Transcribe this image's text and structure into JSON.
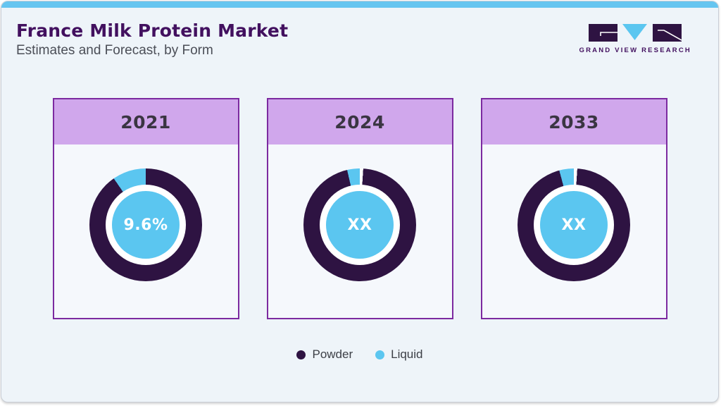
{
  "header": {
    "title": "France Milk Protein Market",
    "subtitle": "Estimates and Forecast, by Form",
    "brand": "GRAND VIEW RESEARCH"
  },
  "colors": {
    "accent_bar": "#66c5f0",
    "canvas_bg": "#eef4f9",
    "card_bg": "#f5f8fc",
    "card_border": "#7c2aa0",
    "card_header_bg": "#d0a7ec",
    "powder": "#2e1342",
    "liquid": "#5bc6f0",
    "title": "#42105f",
    "subtitle": "#4b4e57",
    "year_text": "#3a3542",
    "center_text": "#ffffff"
  },
  "chart_data": {
    "type": "pie",
    "subtype": "donut-multiples",
    "title": "France Milk Protein Market",
    "subtitle": "Estimates and Forecast, by Form",
    "legend_position": "bottom",
    "legend": [
      {
        "label": "Powder",
        "color": "#2e1342"
      },
      {
        "label": "Liquid",
        "color": "#5bc6f0"
      }
    ],
    "donuts": [
      {
        "year": "2021",
        "center_label": "9.6%",
        "liquid_share_pct": 9.6,
        "powder_share_pct": 90.4,
        "arc": {
          "liquid_start_deg": 325.4,
          "liquid_end_deg": 360,
          "leading_gap_deg": 0
        }
      },
      {
        "year": "2024",
        "center_label": "XX",
        "arc": {
          "liquid_start_deg": 347,
          "liquid_end_deg": 360,
          "leading_gap_deg": 3.5
        }
      },
      {
        "year": "2033",
        "center_label": "XX",
        "arc": {
          "liquid_start_deg": 345,
          "liquid_end_deg": 360,
          "leading_gap_deg": 3.5
        }
      }
    ]
  }
}
